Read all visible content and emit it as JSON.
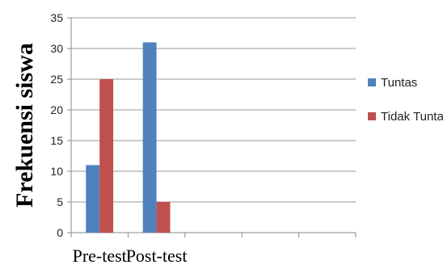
{
  "chart_data": {
    "type": "bar",
    "categories": [
      "Pre-test",
      "Post-test",
      "",
      "",
      ""
    ],
    "series": [
      {
        "name": "Tuntas",
        "values": [
          11,
          31,
          null,
          null,
          null
        ],
        "color": "#4f81bd"
      },
      {
        "name": "Tidak Tuntas",
        "values": [
          25,
          5,
          null,
          null,
          null
        ],
        "color": "#c0504d"
      }
    ],
    "ylabel": "Frekuensi siswa",
    "xlabel": "",
    "ylim": [
      0,
      35
    ],
    "yticks": [
      0,
      5,
      10,
      15,
      20,
      25,
      30,
      35
    ],
    "grid": true,
    "legend_position": "right"
  }
}
